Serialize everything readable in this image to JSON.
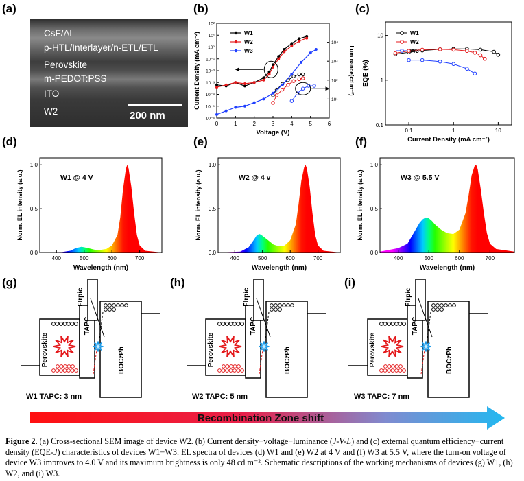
{
  "panels": {
    "a": {
      "letter": "(a)",
      "layers": [
        "CsF/Al",
        "p-HTL/Interlayer/n-ETL/ETL",
        "Perovskite",
        "m-PEDOT:PSS",
        "ITO",
        "W2"
      ],
      "scale_bar": "200 nm"
    },
    "b": {
      "letter": "(b)"
    },
    "c": {
      "letter": "(c)"
    },
    "d": {
      "letter": "(d)"
    },
    "e": {
      "letter": "(e)"
    },
    "f": {
      "letter": "(f)"
    },
    "g": {
      "letter": "(g)"
    },
    "h": {
      "letter": "(h)"
    },
    "i": {
      "letter": "(i)"
    }
  },
  "chart_data": [
    {
      "id": "b",
      "type": "line",
      "xlabel": "Voltage (V)",
      "ylabel": "Current Density (mA cm⁻²)",
      "y2label": "Luminance(cd m⁻²)",
      "xlim": [
        0,
        6
      ],
      "xticks": [
        "0",
        "1",
        "2",
        "3",
        "4",
        "5",
        "6"
      ],
      "yticks": [
        "10⁻⁶",
        "10⁻⁵",
        "10⁻⁴",
        "10⁻³",
        "10⁻²",
        "10⁻¹",
        "10⁰",
        "10¹",
        "10²"
      ],
      "y2ticks": [
        "10¹",
        "10²",
        "10³",
        "10⁴"
      ],
      "series": [
        {
          "name": "W1",
          "color": "#000000",
          "current_x": [
            0,
            0.5,
            1,
            1.5,
            2,
            2.5,
            2.8,
            3,
            3.3,
            3.6,
            4,
            4.4,
            4.8
          ],
          "current_log": [
            -3.2,
            -3.3,
            -3.0,
            -3.3,
            -3.0,
            -2.6,
            -2.1,
            -1.5,
            -0.8,
            -0.2,
            0.3,
            0.7,
            0.9
          ],
          "lum_x": [
            3.0,
            3.2,
            3.5,
            3.8,
            4.1,
            4.4,
            4.6
          ],
          "lum_log": [
            1.2,
            1.5,
            1.8,
            2.0,
            2.2,
            2.3,
            2.3
          ]
        },
        {
          "name": "W2",
          "color": "#e41a1c",
          "current_x": [
            0,
            0.5,
            1,
            1.5,
            2,
            2.5,
            2.8,
            3,
            3.3,
            3.6,
            4,
            4.4,
            4.8
          ],
          "current_log": [
            -3.4,
            -3.2,
            -3.0,
            -3.1,
            -3.0,
            -2.8,
            -2.3,
            -1.7,
            -1.0,
            -0.4,
            0.1,
            0.5,
            0.75
          ],
          "lum_x": [
            3.0,
            3.2,
            3.5,
            3.8,
            4.1,
            4.4,
            4.6
          ],
          "lum_log": [
            0.8,
            1.2,
            1.5,
            1.75,
            1.95,
            2.05,
            2.1
          ]
        },
        {
          "name": "W3",
          "color": "#1f3fff",
          "current_x": [
            0,
            0.5,
            1,
            1.5,
            2,
            2.5,
            3,
            3.5,
            4,
            4.5,
            5,
            5.3
          ],
          "current_log": [
            -5.7,
            -5.4,
            -5.1,
            -5.0,
            -4.7,
            -4.4,
            -3.9,
            -3.2,
            -2.3,
            -1.3,
            -0.5,
            -0.2
          ],
          "lum_x": [
            4.0,
            4.3,
            4.6,
            4.9,
            5.2
          ],
          "lum_log": [
            0.9,
            1.3,
            1.55,
            1.7,
            1.7
          ]
        }
      ]
    },
    {
      "id": "c",
      "type": "line",
      "xlabel": "Current Density (mA cm⁻²)",
      "ylabel": "EQE (%)",
      "xscale": "log",
      "yscale": "log",
      "xlim": [
        0.03,
        20
      ],
      "ylim": [
        0.1,
        20
      ],
      "xticks": [
        "0.1",
        "1",
        "10"
      ],
      "yticks": [
        "0.1",
        "1",
        "10"
      ],
      "series": [
        {
          "name": "W1",
          "color": "#000000",
          "x": [
            0.05,
            0.1,
            0.2,
            0.5,
            1,
            2,
            4,
            8,
            10
          ],
          "y": [
            3.8,
            4.2,
            4.6,
            4.9,
            5.0,
            5.0,
            4.8,
            4.3,
            3.7
          ]
        },
        {
          "name": "W2",
          "color": "#e41a1c",
          "x": [
            0.05,
            0.1,
            0.2,
            0.5,
            1,
            2,
            3,
            4,
            5
          ],
          "y": [
            4.0,
            4.5,
            4.8,
            4.9,
            4.8,
            4.5,
            4.1,
            3.6,
            3.0
          ]
        },
        {
          "name": "W3",
          "color": "#1f3fff",
          "x": [
            0.1,
            0.2,
            0.5,
            1,
            2,
            3
          ],
          "y": [
            2.8,
            2.8,
            2.6,
            2.3,
            1.8,
            1.4
          ]
        }
      ]
    },
    {
      "id": "d",
      "type": "area",
      "label": "W1  @ 4 V",
      "xlabel": "Wavelength (nm)",
      "ylabel": "Norm. EL intensity (a.u.)",
      "xlim": [
        340,
        780
      ],
      "ylim": [
        0,
        1.08
      ],
      "xticks": [
        "400",
        "500",
        "600",
        "700"
      ],
      "yticks": [
        "0.0",
        "0.5",
        "1.0"
      ],
      "x": [
        340,
        420,
        450,
        470,
        490,
        500,
        520,
        540,
        560,
        580,
        600,
        620,
        630,
        640,
        650,
        655,
        660,
        670,
        680,
        690,
        700,
        720,
        780
      ],
      "y": [
        0,
        0.005,
        0.02,
        0.05,
        0.065,
        0.06,
        0.045,
        0.03,
        0.03,
        0.04,
        0.08,
        0.2,
        0.4,
        0.72,
        0.95,
        1.0,
        0.96,
        0.75,
        0.45,
        0.2,
        0.08,
        0.02,
        0
      ]
    },
    {
      "id": "e",
      "type": "area",
      "label": "W2  @ 4 v",
      "xlabel": "Wavelength (nm)",
      "ylabel": "Norm. EL intensity (a.u.)",
      "xlim": [
        340,
        780
      ],
      "ylim": [
        0,
        1.08
      ],
      "xticks": [
        "400",
        "500",
        "600",
        "700"
      ],
      "yticks": [
        "0.0",
        "0.5",
        "1.0"
      ],
      "x": [
        340,
        420,
        450,
        470,
        480,
        490,
        500,
        520,
        540,
        560,
        580,
        600,
        620,
        630,
        640,
        650,
        655,
        660,
        670,
        680,
        690,
        700,
        720,
        780
      ],
      "y": [
        0,
        0.01,
        0.06,
        0.15,
        0.2,
        0.21,
        0.19,
        0.14,
        0.09,
        0.07,
        0.08,
        0.14,
        0.32,
        0.55,
        0.82,
        0.97,
        1.0,
        0.96,
        0.75,
        0.45,
        0.2,
        0.08,
        0.02,
        0
      ]
    },
    {
      "id": "f",
      "type": "area",
      "label": "W3  @ 5.5 V",
      "xlabel": "Wavelength (nm)",
      "ylabel": "Norm. EL intensity (a.u.)",
      "xlim": [
        340,
        780
      ],
      "ylim": [
        0,
        1.08
      ],
      "xticks": [
        "400",
        "500",
        "600",
        "700"
      ],
      "yticks": [
        "0.0",
        "0.5",
        "1.0"
      ],
      "x": [
        340,
        400,
        430,
        450,
        470,
        480,
        490,
        500,
        510,
        520,
        540,
        560,
        580,
        600,
        620,
        630,
        640,
        650,
        655,
        660,
        670,
        680,
        690,
        700,
        720,
        780
      ],
      "y": [
        0.01,
        0.05,
        0.1,
        0.22,
        0.34,
        0.38,
        0.4,
        0.39,
        0.36,
        0.32,
        0.26,
        0.22,
        0.21,
        0.26,
        0.45,
        0.65,
        0.88,
        0.99,
        1.0,
        0.95,
        0.72,
        0.45,
        0.22,
        0.1,
        0.04,
        0.01
      ]
    }
  ],
  "diagrams": {
    "g": {
      "labels": {
        "perovskite": "Perovskite",
        "tapc": "TAPC",
        "firpic": "FIrpic",
        "boczph": "BOCzPh"
      },
      "caption": "W1 TAPC: 3 nm"
    },
    "h": {
      "labels": {
        "perovskite": "Perovskite",
        "tapc": "TAPC",
        "firpic": "FIrpic",
        "boczph": "BOCzPh"
      },
      "caption": "W2 TAPC: 5 nm"
    },
    "i": {
      "labels": {
        "perovskite": "Perovskite",
        "tapc": "TAPC",
        "firpic": "FIrpic",
        "boczph": "BOCzPh"
      },
      "caption": "W3 TAPC: 7 nm"
    }
  },
  "arrow_label": "Recombination Zone shift",
  "caption": {
    "lead": "Figure 2.",
    "text1": " (a) Cross-sectional SEM image of device W2. (b) Current density−voltage−luminance (",
    "jvl": "J-V-L",
    "text2": ") and (c) external quantum efficiency−current density (EQE-",
    "j": "J",
    "text3": ") characteristics of devices W1−W3. EL spectra of devices (d) W1 and (e) W2 at 4 V and (f) W3 at 5.5 V, where the turn-on voltage of device W3 improves to 4.0 V and its maximum brightness is only 48 cd m⁻². Schematic descriptions of the working mechanisms of devices (g) W1, (h) W2, and (i) W3."
  }
}
